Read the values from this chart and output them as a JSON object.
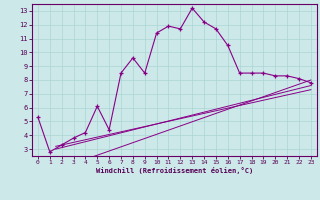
{
  "xlabel": "Windchill (Refroidissement éolien,°C)",
  "background_color": "#cde8e8",
  "line_color": "#880088",
  "grid_color": "#aad4d4",
  "xlim": [
    -0.5,
    23.5
  ],
  "ylim": [
    2.5,
    13.5
  ],
  "xticks": [
    0,
    1,
    2,
    3,
    4,
    5,
    6,
    7,
    8,
    9,
    10,
    11,
    12,
    13,
    14,
    15,
    16,
    17,
    18,
    19,
    20,
    21,
    22,
    23
  ],
  "yticks": [
    3,
    4,
    5,
    6,
    7,
    8,
    9,
    10,
    11,
    12,
    13
  ],
  "main_x": [
    0,
    1,
    2,
    3,
    4,
    5,
    6,
    7,
    8,
    9,
    10,
    11,
    12,
    13,
    14,
    15,
    16,
    17,
    18,
    19,
    20,
    21,
    22,
    23
  ],
  "main_y": [
    5.3,
    2.8,
    3.3,
    3.8,
    4.2,
    6.1,
    4.4,
    8.5,
    9.6,
    8.5,
    11.4,
    11.9,
    11.7,
    13.2,
    12.2,
    11.7,
    10.5,
    8.5,
    8.5,
    8.5,
    8.3,
    8.3,
    8.1,
    7.8
  ],
  "diag_lines": [
    {
      "x": [
        1.5,
        23
      ],
      "y": [
        3.0,
        7.6
      ]
    },
    {
      "x": [
        1.5,
        23
      ],
      "y": [
        3.2,
        7.3
      ]
    },
    {
      "x": [
        1.5,
        23
      ],
      "y": [
        1.5,
        8.0
      ]
    }
  ]
}
